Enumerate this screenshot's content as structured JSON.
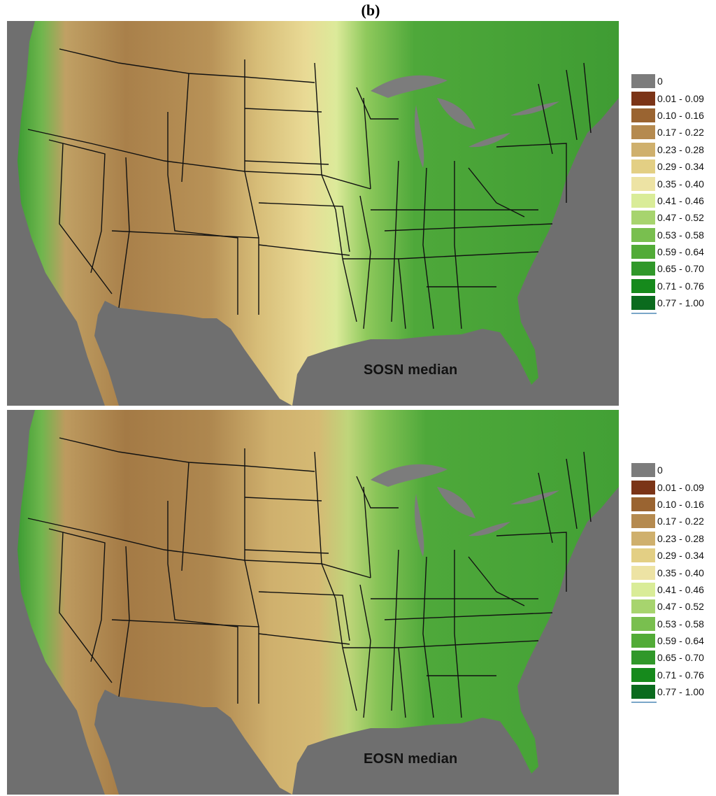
{
  "figure_label": "(b)",
  "panels": [
    {
      "caption": "SOSN median"
    },
    {
      "caption": "EOSN median"
    }
  ],
  "legend": {
    "items": [
      {
        "label": "0",
        "color": "#7c7c7c"
      },
      {
        "label": "0.01 - 0.09",
        "color": "#7b3417"
      },
      {
        "label": "0.10 - 0.16",
        "color": "#9a6431"
      },
      {
        "label": "0.17 - 0.22",
        "color": "#b58a4f"
      },
      {
        "label": "0.23 - 0.28",
        "color": "#cfb06d"
      },
      {
        "label": "0.29 - 0.34",
        "color": "#e3cf84"
      },
      {
        "label": "0.35 - 0.40",
        "color": "#ede3a4"
      },
      {
        "label": "0.41 - 0.46",
        "color": "#d9ec98"
      },
      {
        "label": "0.47 - 0.52",
        "color": "#a7d46e"
      },
      {
        "label": "0.53 - 0.58",
        "color": "#79bf4f"
      },
      {
        "label": "0.59 - 0.64",
        "color": "#52ab37"
      },
      {
        "label": "0.65 - 0.70",
        "color": "#30982a"
      },
      {
        "label": "0.71 - 0.76",
        "color": "#168a1c"
      },
      {
        "label": "0.77 - 1.00",
        "color": "#0b6b1e"
      }
    ]
  },
  "colors": {
    "ocean": "#6f6f6f",
    "lakes": "#7c7c7c",
    "state_borders": "#111111",
    "land_arid": "#a9804a",
    "land_plains": "#e6d48a",
    "land_east": "#4ea83a"
  }
}
